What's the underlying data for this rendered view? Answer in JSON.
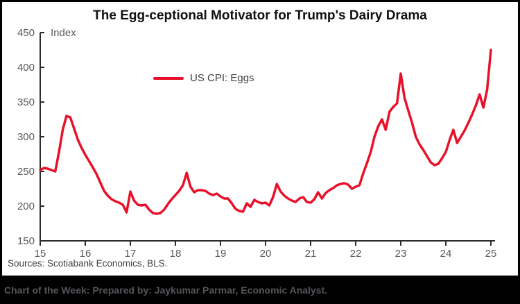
{
  "colors": {
    "line_red": "#e8112a",
    "axis": "#2b2b2b",
    "tick_label": "#595959",
    "title_text": "#111111",
    "source_text": "#3f3f3f",
    "footer_bg": "#000000",
    "footer_text": "#54565a",
    "background": "#ffffff"
  },
  "sources": "Sources: Scotiabank Economics, BLS.",
  "footer": "Chart of the Week: Prepared by: Jaykumar Parmar, Economic Analyst.",
  "chart_data": {
    "type": "line",
    "title": "The Egg-ceptional Motivator for Trump's Dairy Drama",
    "ylabel": "Index",
    "xlabel": "",
    "grid": false,
    "legend_position": "inside-top-left",
    "ylim": [
      150,
      450
    ],
    "y_ticks": [
      150,
      200,
      250,
      300,
      350,
      400,
      450
    ],
    "x_tick_labels": [
      "15",
      "16",
      "17",
      "18",
      "19",
      "20",
      "21",
      "22",
      "23",
      "24",
      "25"
    ],
    "x_start": "2015-01",
    "x_interval": "monthly",
    "series": [
      {
        "name": "US CPI: Eggs",
        "color": "#e8112a",
        "values": [
          252,
          255,
          254,
          252,
          250,
          278,
          310,
          330,
          328,
          312,
          296,
          284,
          274,
          265,
          256,
          246,
          234,
          222,
          215,
          210,
          207,
          205,
          202,
          191,
          221,
          208,
          202,
          201,
          202,
          195,
          190,
          189,
          190,
          195,
          203,
          210,
          216,
          222,
          230,
          248,
          228,
          220,
          223,
          223,
          222,
          218,
          216,
          218,
          214,
          211,
          211,
          204,
          196,
          193,
          192,
          204,
          199,
          209,
          206,
          204,
          205,
          201,
          213,
          232,
          221,
          215,
          211,
          208,
          206,
          211,
          213,
          206,
          205,
          210,
          220,
          211,
          219,
          223,
          226,
          230,
          232,
          233,
          231,
          225,
          228,
          230,
          247,
          262,
          278,
          300,
          315,
          325,
          310,
          336,
          343,
          348,
          391,
          356,
          338,
          320,
          300,
          289,
          281,
          272,
          263,
          259,
          261,
          269,
          278,
          295,
          310,
          291,
          300,
          309,
          320,
          332,
          345,
          361,
          342,
          368,
          425
        ]
      }
    ]
  }
}
